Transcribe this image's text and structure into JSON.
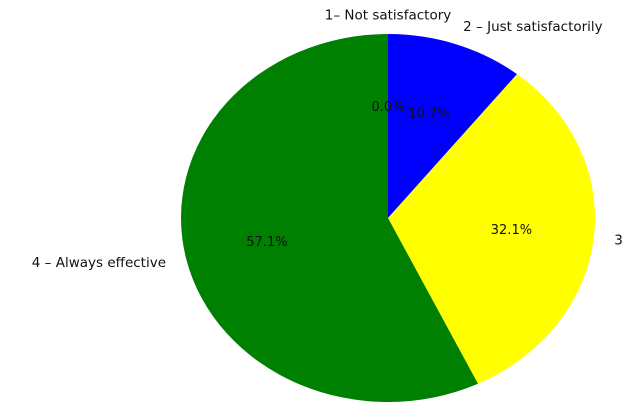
{
  "chart_data": {
    "type": "pie",
    "title": "",
    "start_angle_deg": 90,
    "direction": "clockwise",
    "slices": [
      {
        "label": "1– Not satisfactory",
        "value": 0.0,
        "pct_label": "0.0%",
        "color": "#ff0000"
      },
      {
        "label": "2 – Just satisfactorily",
        "value": 10.7,
        "pct_label": "10.7%",
        "color": "#0000ff"
      },
      {
        "label": "3",
        "value": 32.1,
        "pct_label": "32.1%",
        "color": "#ffff00"
      },
      {
        "label": "4 – Always effective",
        "value": 57.1,
        "pct_label": "57.1%",
        "color": "#008000"
      }
    ]
  }
}
